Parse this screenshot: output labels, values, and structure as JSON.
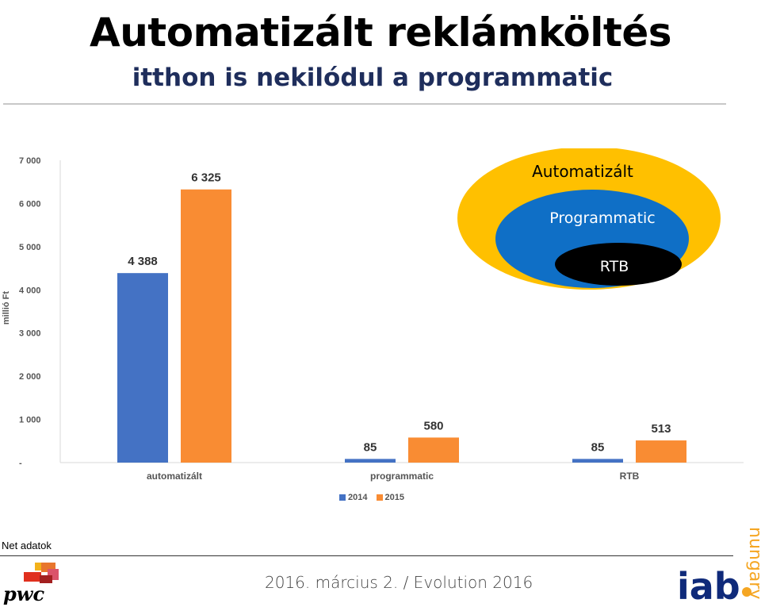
{
  "header": {
    "title": "Automatizált reklámköltés",
    "subtitle": "itthon is nekilódul a programmatic"
  },
  "chart_data": {
    "type": "bar",
    "categories": [
      "automatizált",
      "programmatic",
      "RTB"
    ],
    "series": [
      {
        "name": "2014",
        "values": [
          4388,
          85,
          85
        ],
        "labels": [
          "4 388",
          "85",
          "85"
        ],
        "color": "#4472c4"
      },
      {
        "name": "2015",
        "values": [
          6325,
          580,
          513
        ],
        "labels": [
          "6 325",
          "580",
          "513"
        ],
        "color": "#f98c33"
      }
    ],
    "ylabel": "millió Ft",
    "ylim": [
      0,
      7000
    ],
    "yticks": [
      {
        "value": 0,
        "label": "-"
      },
      {
        "value": 1000,
        "label": "1 000"
      },
      {
        "value": 2000,
        "label": "2 000"
      },
      {
        "value": 3000,
        "label": "3 000"
      },
      {
        "value": 4000,
        "label": "4 000"
      },
      {
        "value": 5000,
        "label": "5 000"
      },
      {
        "value": 6000,
        "label": "6 000"
      },
      {
        "value": 7000,
        "label": "7 000"
      }
    ],
    "grid": false,
    "legend_position": "bottom"
  },
  "venn": {
    "outer": {
      "label": "Automatizált",
      "color": "#ffc000"
    },
    "middle": {
      "label": "Programmatic",
      "color": "#0f6fc6"
    },
    "inner": {
      "label": "RTB",
      "color": "#000000"
    }
  },
  "note": "Net adatok",
  "footer": {
    "text": "2016. március 2. / Evolution 2016",
    "pwc_logo": "pwc",
    "iab_logo_main": "iab",
    "iab_logo_side": "hungary"
  }
}
